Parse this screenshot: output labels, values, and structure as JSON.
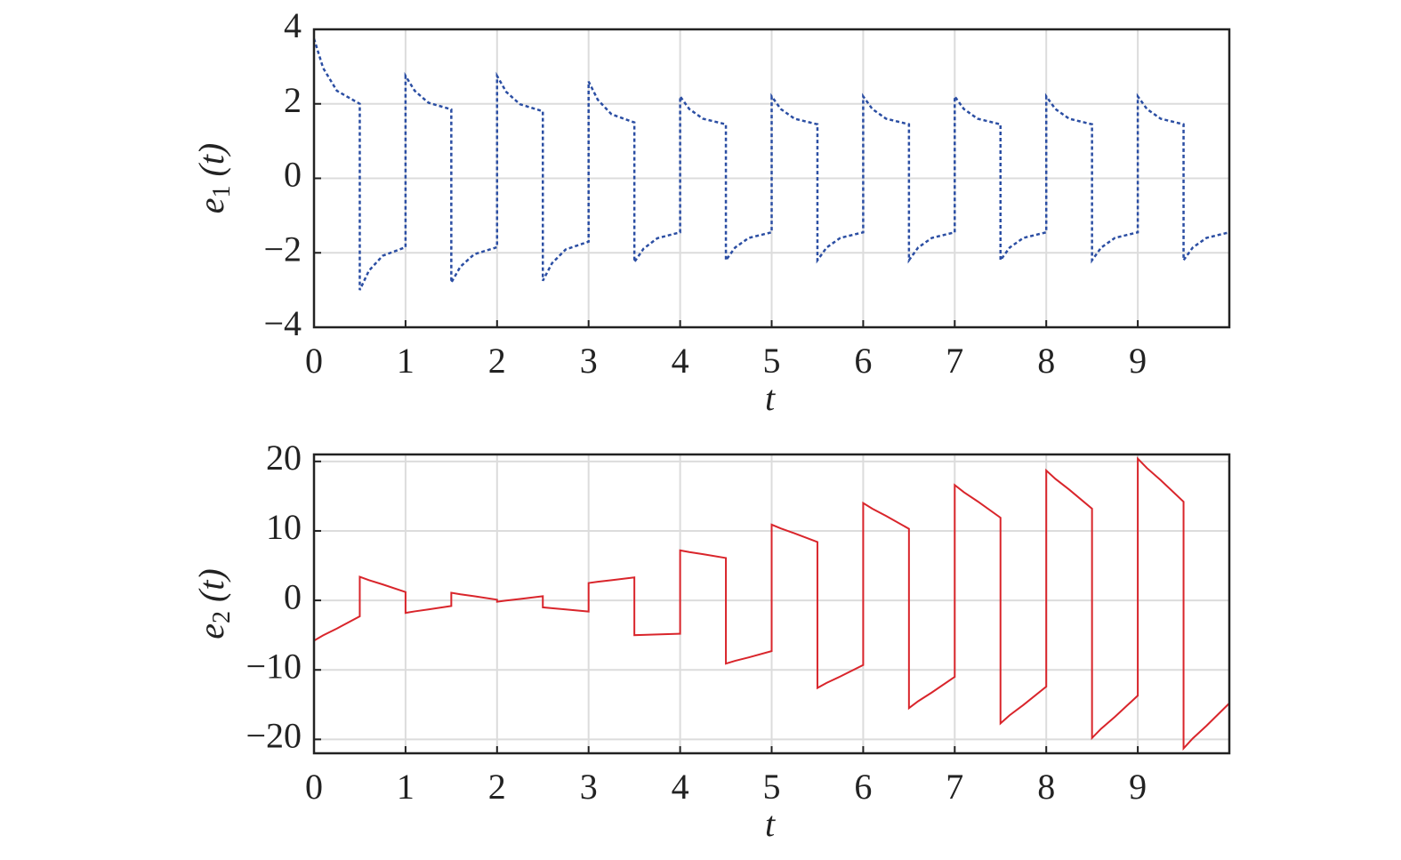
{
  "chart_data": [
    {
      "type": "line",
      "ylabel": [
        "e",
        "1",
        "(t)"
      ],
      "xlabel": "t",
      "x": [
        0,
        0.1,
        0.25,
        0.5,
        0.5,
        0.6,
        0.75,
        1,
        1,
        1.1,
        1.25,
        1.5,
        1.5,
        1.6,
        1.75,
        2,
        2,
        2.1,
        2.25,
        2.5,
        2.5,
        2.6,
        2.75,
        3,
        3,
        3.1,
        3.25,
        3.5,
        3.5,
        3.6,
        3.75,
        4,
        4,
        4.1,
        4.25,
        4.5,
        4.5,
        4.6,
        4.75,
        5,
        5,
        5.1,
        5.25,
        5.5,
        5.5,
        5.6,
        5.75,
        6,
        6,
        6.1,
        6.25,
        6.5,
        6.5,
        6.6,
        6.75,
        7,
        7,
        7.1,
        7.25,
        7.5,
        7.5,
        7.6,
        7.75,
        8,
        8,
        8.1,
        8.25,
        8.5,
        8.5,
        8.6,
        8.75,
        9,
        9,
        9.1,
        9.25,
        9.5,
        9.5,
        9.6,
        9.75,
        10
      ],
      "series": [
        {
          "color": "#2b4ea3",
          "dashed": true,
          "values": [
            3.75,
            2.96,
            2.35,
            2.0,
            -3.0,
            -2.48,
            -2.08,
            -1.85,
            2.75,
            2.35,
            2.03,
            1.85,
            -2.8,
            -2.37,
            -2.04,
            -1.85,
            2.75,
            2.32,
            1.99,
            1.8,
            -2.75,
            -2.28,
            -1.91,
            -1.7,
            2.6,
            2.11,
            1.72,
            1.5,
            -2.25,
            -1.89,
            -1.61,
            -1.45,
            2.2,
            1.86,
            1.6,
            1.45,
            -2.2,
            -1.86,
            -1.6,
            -1.45,
            2.2,
            1.86,
            1.6,
            1.45,
            -2.2,
            -1.86,
            -1.6,
            -1.45,
            2.2,
            1.86,
            1.6,
            1.45,
            -2.2,
            -1.86,
            -1.6,
            -1.45,
            2.2,
            1.86,
            1.6,
            1.45,
            -2.2,
            -1.86,
            -1.6,
            -1.45,
            2.2,
            1.86,
            1.6,
            1.45,
            -2.2,
            -1.86,
            -1.6,
            -1.45,
            2.2,
            1.86,
            1.6,
            1.45,
            -2.2,
            -1.86,
            -1.6,
            -1.45
          ]
        }
      ],
      "xlim": [
        0,
        10
      ],
      "xticks": [
        0,
        1,
        2,
        3,
        4,
        5,
        6,
        7,
        8,
        9
      ],
      "ylim": [
        -4,
        4
      ],
      "yticks": [
        {
          "value": -4,
          "label": "−4"
        },
        {
          "value": -2,
          "label": "−2"
        },
        0,
        2,
        4
      ],
      "grid": true
    },
    {
      "type": "line",
      "ylabel": [
        "e",
        "2",
        "(t)"
      ],
      "xlabel": "t",
      "x": [
        0,
        0.1,
        0.25,
        0.5,
        0.5,
        0.6,
        0.75,
        1,
        1,
        1.1,
        1.25,
        1.5,
        1.5,
        1.6,
        1.75,
        2,
        2,
        2.1,
        2.25,
        2.5,
        2.5,
        2.6,
        2.75,
        3,
        3,
        3.1,
        3.25,
        3.5,
        3.5,
        3.6,
        3.75,
        4,
        4,
        4.1,
        4.25,
        4.5,
        4.5,
        4.6,
        4.75,
        5,
        5,
        5.1,
        5.25,
        5.5,
        5.5,
        5.6,
        5.75,
        6,
        6,
        6.1,
        6.25,
        6.5,
        6.5,
        6.6,
        6.75,
        7,
        7,
        7.1,
        7.25,
        7.5,
        7.5,
        7.6,
        7.75,
        8,
        8,
        8.1,
        8.25,
        8.5,
        8.5,
        8.6,
        8.75,
        9,
        9,
        9.1,
        9.25,
        9.5,
        9.5,
        9.6,
        9.75,
        10
      ],
      "series": [
        {
          "color": "#d9252b",
          "dashed": false,
          "values": [
            -5.8,
            -5.03,
            -4.05,
            -2.3,
            3.4,
            2.92,
            2.3,
            1.2,
            -1.8,
            -1.58,
            -1.3,
            -0.8,
            1.1,
            0.88,
            0.6,
            0.1,
            -0.2,
            -0.02,
            0.2,
            0.6,
            -1.0,
            -1.13,
            -1.3,
            -1.6,
            2.5,
            2.68,
            2.9,
            3.3,
            -5.0,
            -4.96,
            -4.9,
            -4.8,
            7.2,
            6.96,
            6.65,
            6.1,
            -9.1,
            -8.7,
            -8.2,
            -7.3,
            10.9,
            10.35,
            9.65,
            8.4,
            -12.6,
            -11.87,
            -10.95,
            -9.3,
            14.0,
            13.19,
            12.15,
            10.3,
            -15.5,
            -14.51,
            -13.25,
            -11.0,
            16.6,
            15.57,
            14.25,
            11.9,
            -17.7,
            -16.53,
            -15.05,
            -12.4,
            18.7,
            17.49,
            15.95,
            13.2,
            -19.8,
            -18.46,
            -16.75,
            -13.7,
            20.4,
            19.04,
            17.3,
            14.2,
            -21.3,
            -19.87,
            -18.05,
            -14.8
          ]
        }
      ],
      "xlim": [
        0,
        10
      ],
      "xticks": [
        0,
        1,
        2,
        3,
        4,
        5,
        6,
        7,
        8,
        9
      ],
      "ylim": [
        -22,
        21
      ],
      "yticks": [
        {
          "value": -20,
          "label": "−20"
        },
        {
          "value": -10,
          "label": "−10"
        },
        0,
        10,
        20
      ],
      "grid": true
    }
  ]
}
